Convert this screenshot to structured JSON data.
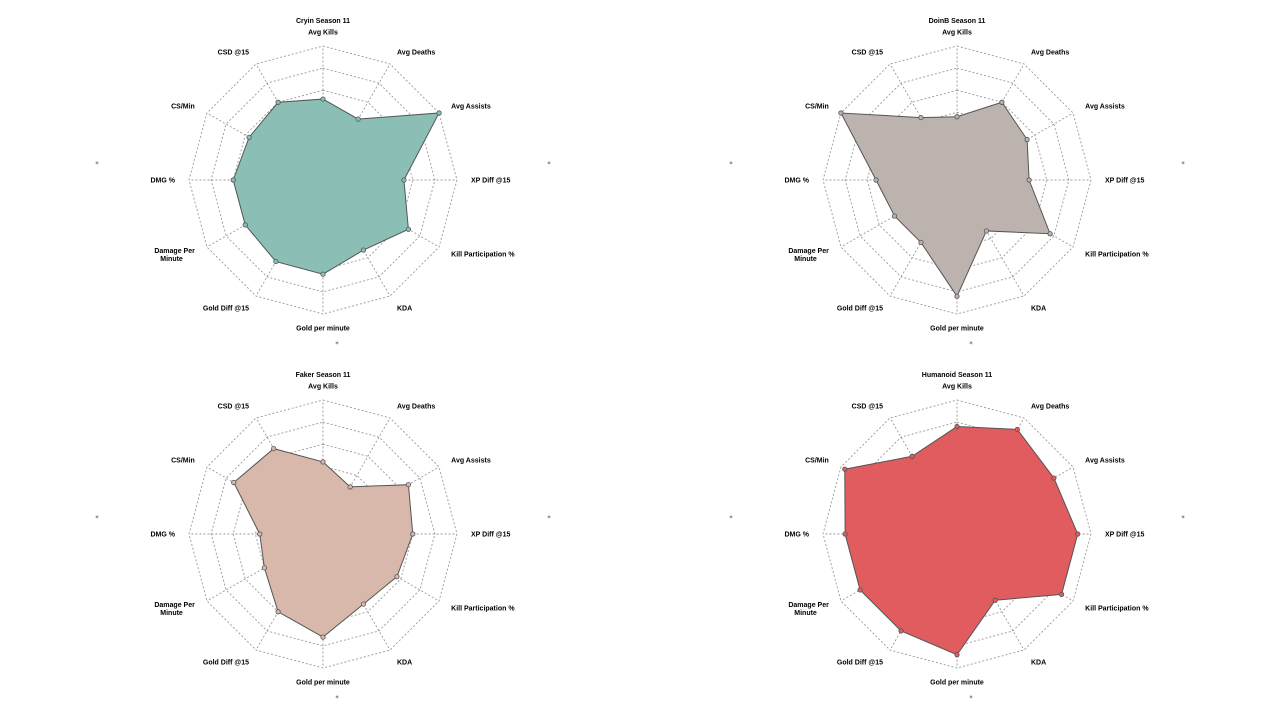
{
  "chart_data": [
    {
      "type": "radar",
      "title": "Cryin Season 11",
      "color": "#8bbfb6",
      "axes": [
        "Avg Kills",
        "Avg Deaths",
        "Avg Assists",
        "XP Diff @15",
        "Kill Participation %",
        "KDA",
        "Gold per minute",
        "Gold Diff @15",
        "Damage Per Minute",
        "DMG %",
        "CS/Min",
        "CSD @15"
      ],
      "values": [
        0.4,
        0.28,
        1.0,
        0.4,
        0.6,
        0.4,
        0.55,
        0.55,
        0.5,
        0.5,
        0.45,
        0.5
      ],
      "rings": 4,
      "grid": true
    },
    {
      "type": "radar",
      "title": "DoinB Season 11",
      "color": "#bcb3af",
      "axes": [
        "Avg Kills",
        "Avg Deaths",
        "Avg Assists",
        "XP Diff @15",
        "Kill Participation %",
        "KDA",
        "Gold per minute",
        "Gold Diff @15",
        "Damage Per Minute",
        "DMG %",
        "CS/Min",
        "CSD @15"
      ],
      "values": [
        0.2,
        0.5,
        0.4,
        0.3,
        0.7,
        0.15,
        0.8,
        0.3,
        0.3,
        0.4,
        1.0,
        0.3
      ],
      "rings": 4,
      "grid": true
    },
    {
      "type": "radar",
      "title": "Faker Season 11",
      "color": "#d8b8aa",
      "axes": [
        "Avg Kills",
        "Avg Deaths",
        "Avg Assists",
        "XP Diff @15",
        "Kill Participation %",
        "KDA",
        "Gold per minute",
        "Gold Diff @15",
        "Damage Per Minute",
        "DMG %",
        "CS/Min",
        "CSD @15"
      ],
      "values": [
        0.3,
        0.1,
        0.6,
        0.5,
        0.45,
        0.4,
        0.65,
        0.5,
        0.25,
        0.2,
        0.65,
        0.6
      ],
      "rings": 4,
      "grid": true
    },
    {
      "type": "radar",
      "title": "Humanoid Season 11",
      "color": "#e05c5f",
      "axes": [
        "Avg Kills",
        "Avg Deaths",
        "Avg Assists",
        "XP Diff @15",
        "Kill Participation %",
        "KDA",
        "Gold per minute",
        "Gold Diff @15",
        "Damage Per Minute",
        "DMG %",
        "CS/Min",
        "CSD @15"
      ],
      "values": [
        0.7,
        0.85,
        0.75,
        0.85,
        0.85,
        0.35,
        0.85,
        0.75,
        0.75,
        0.75,
        0.95,
        0.5
      ],
      "rings": 4,
      "grid": true
    }
  ]
}
